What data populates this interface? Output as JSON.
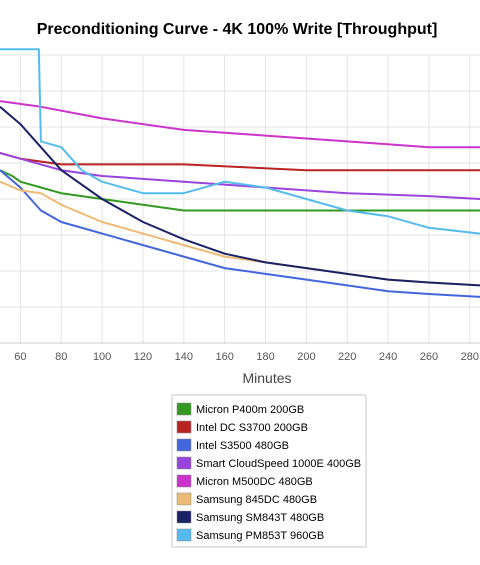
{
  "chart_data": {
    "type": "line",
    "title": "Preconditioning Curve - 4K 100% Write [Throughput]",
    "xlabel": "Minutes",
    "ylabel": "",
    "xlim": [
      50,
      285
    ],
    "ylim": [
      0,
      50
    ],
    "x_ticks": [
      "60",
      "80",
      "100",
      "120",
      "140",
      "160",
      "180",
      "200",
      "220",
      "240",
      "260",
      "280"
    ],
    "grid": true,
    "legend_position": "bottom",
    "series": [
      {
        "name": "Micron P400m 200GB",
        "color": "#339922",
        "values": [
          [
            50,
            30
          ],
          [
            56,
            29
          ],
          [
            60,
            28
          ],
          [
            70,
            27
          ],
          [
            80,
            26
          ],
          [
            100,
            25
          ],
          [
            120,
            24
          ],
          [
            140,
            23
          ],
          [
            160,
            23
          ],
          [
            200,
            23
          ],
          [
            240,
            23
          ],
          [
            285,
            23
          ]
        ]
      },
      {
        "name": "Intel DC S3700 200GB",
        "color": "#bb2222",
        "values": [
          [
            50,
            33
          ],
          [
            60,
            32
          ],
          [
            80,
            31
          ],
          [
            100,
            31
          ],
          [
            140,
            31
          ],
          [
            200,
            30
          ],
          [
            285,
            30
          ]
        ]
      },
      {
        "name": "Intel S3500 480GB",
        "color": "#4466dd",
        "values": [
          [
            50,
            30
          ],
          [
            60,
            27
          ],
          [
            70,
            23
          ],
          [
            80,
            21
          ],
          [
            100,
            19
          ],
          [
            120,
            17
          ],
          [
            140,
            15
          ],
          [
            160,
            13
          ],
          [
            180,
            12
          ],
          [
            200,
            11
          ],
          [
            220,
            10
          ],
          [
            240,
            9
          ],
          [
            260,
            8.5
          ],
          [
            285,
            8
          ]
        ]
      },
      {
        "name": "Smart CloudSpeed 1000E 400GB",
        "color": "#9944dd",
        "values": [
          [
            50,
            33
          ],
          [
            60,
            32
          ],
          [
            80,
            30
          ],
          [
            100,
            29
          ],
          [
            140,
            28
          ],
          [
            180,
            27
          ],
          [
            220,
            26
          ],
          [
            260,
            25.5
          ],
          [
            285,
            25
          ]
        ]
      },
      {
        "name": "Micron M500DC 480GB",
        "color": "#cc33cc",
        "values": [
          [
            50,
            42
          ],
          [
            70,
            41
          ],
          [
            100,
            39
          ],
          [
            140,
            37
          ],
          [
            180,
            36
          ],
          [
            220,
            35
          ],
          [
            260,
            34
          ],
          [
            285,
            34
          ]
        ]
      },
      {
        "name": "Samsung 845DC 480GB",
        "color": "#eebb77",
        "values": [
          [
            50,
            28
          ],
          [
            60,
            26.5
          ],
          [
            70,
            26
          ],
          [
            80,
            24
          ],
          [
            100,
            21
          ],
          [
            120,
            19
          ],
          [
            140,
            17
          ],
          [
            160,
            15
          ],
          [
            180,
            14
          ],
          [
            200,
            13
          ],
          [
            220,
            12
          ],
          [
            240,
            11
          ],
          [
            260,
            10.5
          ],
          [
            285,
            10
          ]
        ]
      },
      {
        "name": "Samsung SM843T 480GB",
        "color": "#1a2266",
        "values": [
          [
            50,
            41
          ],
          [
            60,
            38
          ],
          [
            70,
            34
          ],
          [
            80,
            30
          ],
          [
            100,
            25
          ],
          [
            120,
            21
          ],
          [
            140,
            18
          ],
          [
            160,
            15.5
          ],
          [
            180,
            14
          ],
          [
            200,
            13
          ],
          [
            220,
            12
          ],
          [
            240,
            11
          ],
          [
            260,
            10.5
          ],
          [
            285,
            10
          ]
        ]
      },
      {
        "name": "Samsung PM853T 960GB",
        "color": "#55bbee",
        "values": [
          [
            50,
            51
          ],
          [
            69,
            51
          ],
          [
            70,
            35
          ],
          [
            80,
            34
          ],
          [
            90,
            30
          ],
          [
            100,
            28
          ],
          [
            120,
            26
          ],
          [
            140,
            26
          ],
          [
            160,
            28
          ],
          [
            180,
            27
          ],
          [
            200,
            25
          ],
          [
            220,
            23
          ],
          [
            240,
            22
          ],
          [
            260,
            20
          ],
          [
            285,
            19
          ]
        ]
      }
    ]
  }
}
